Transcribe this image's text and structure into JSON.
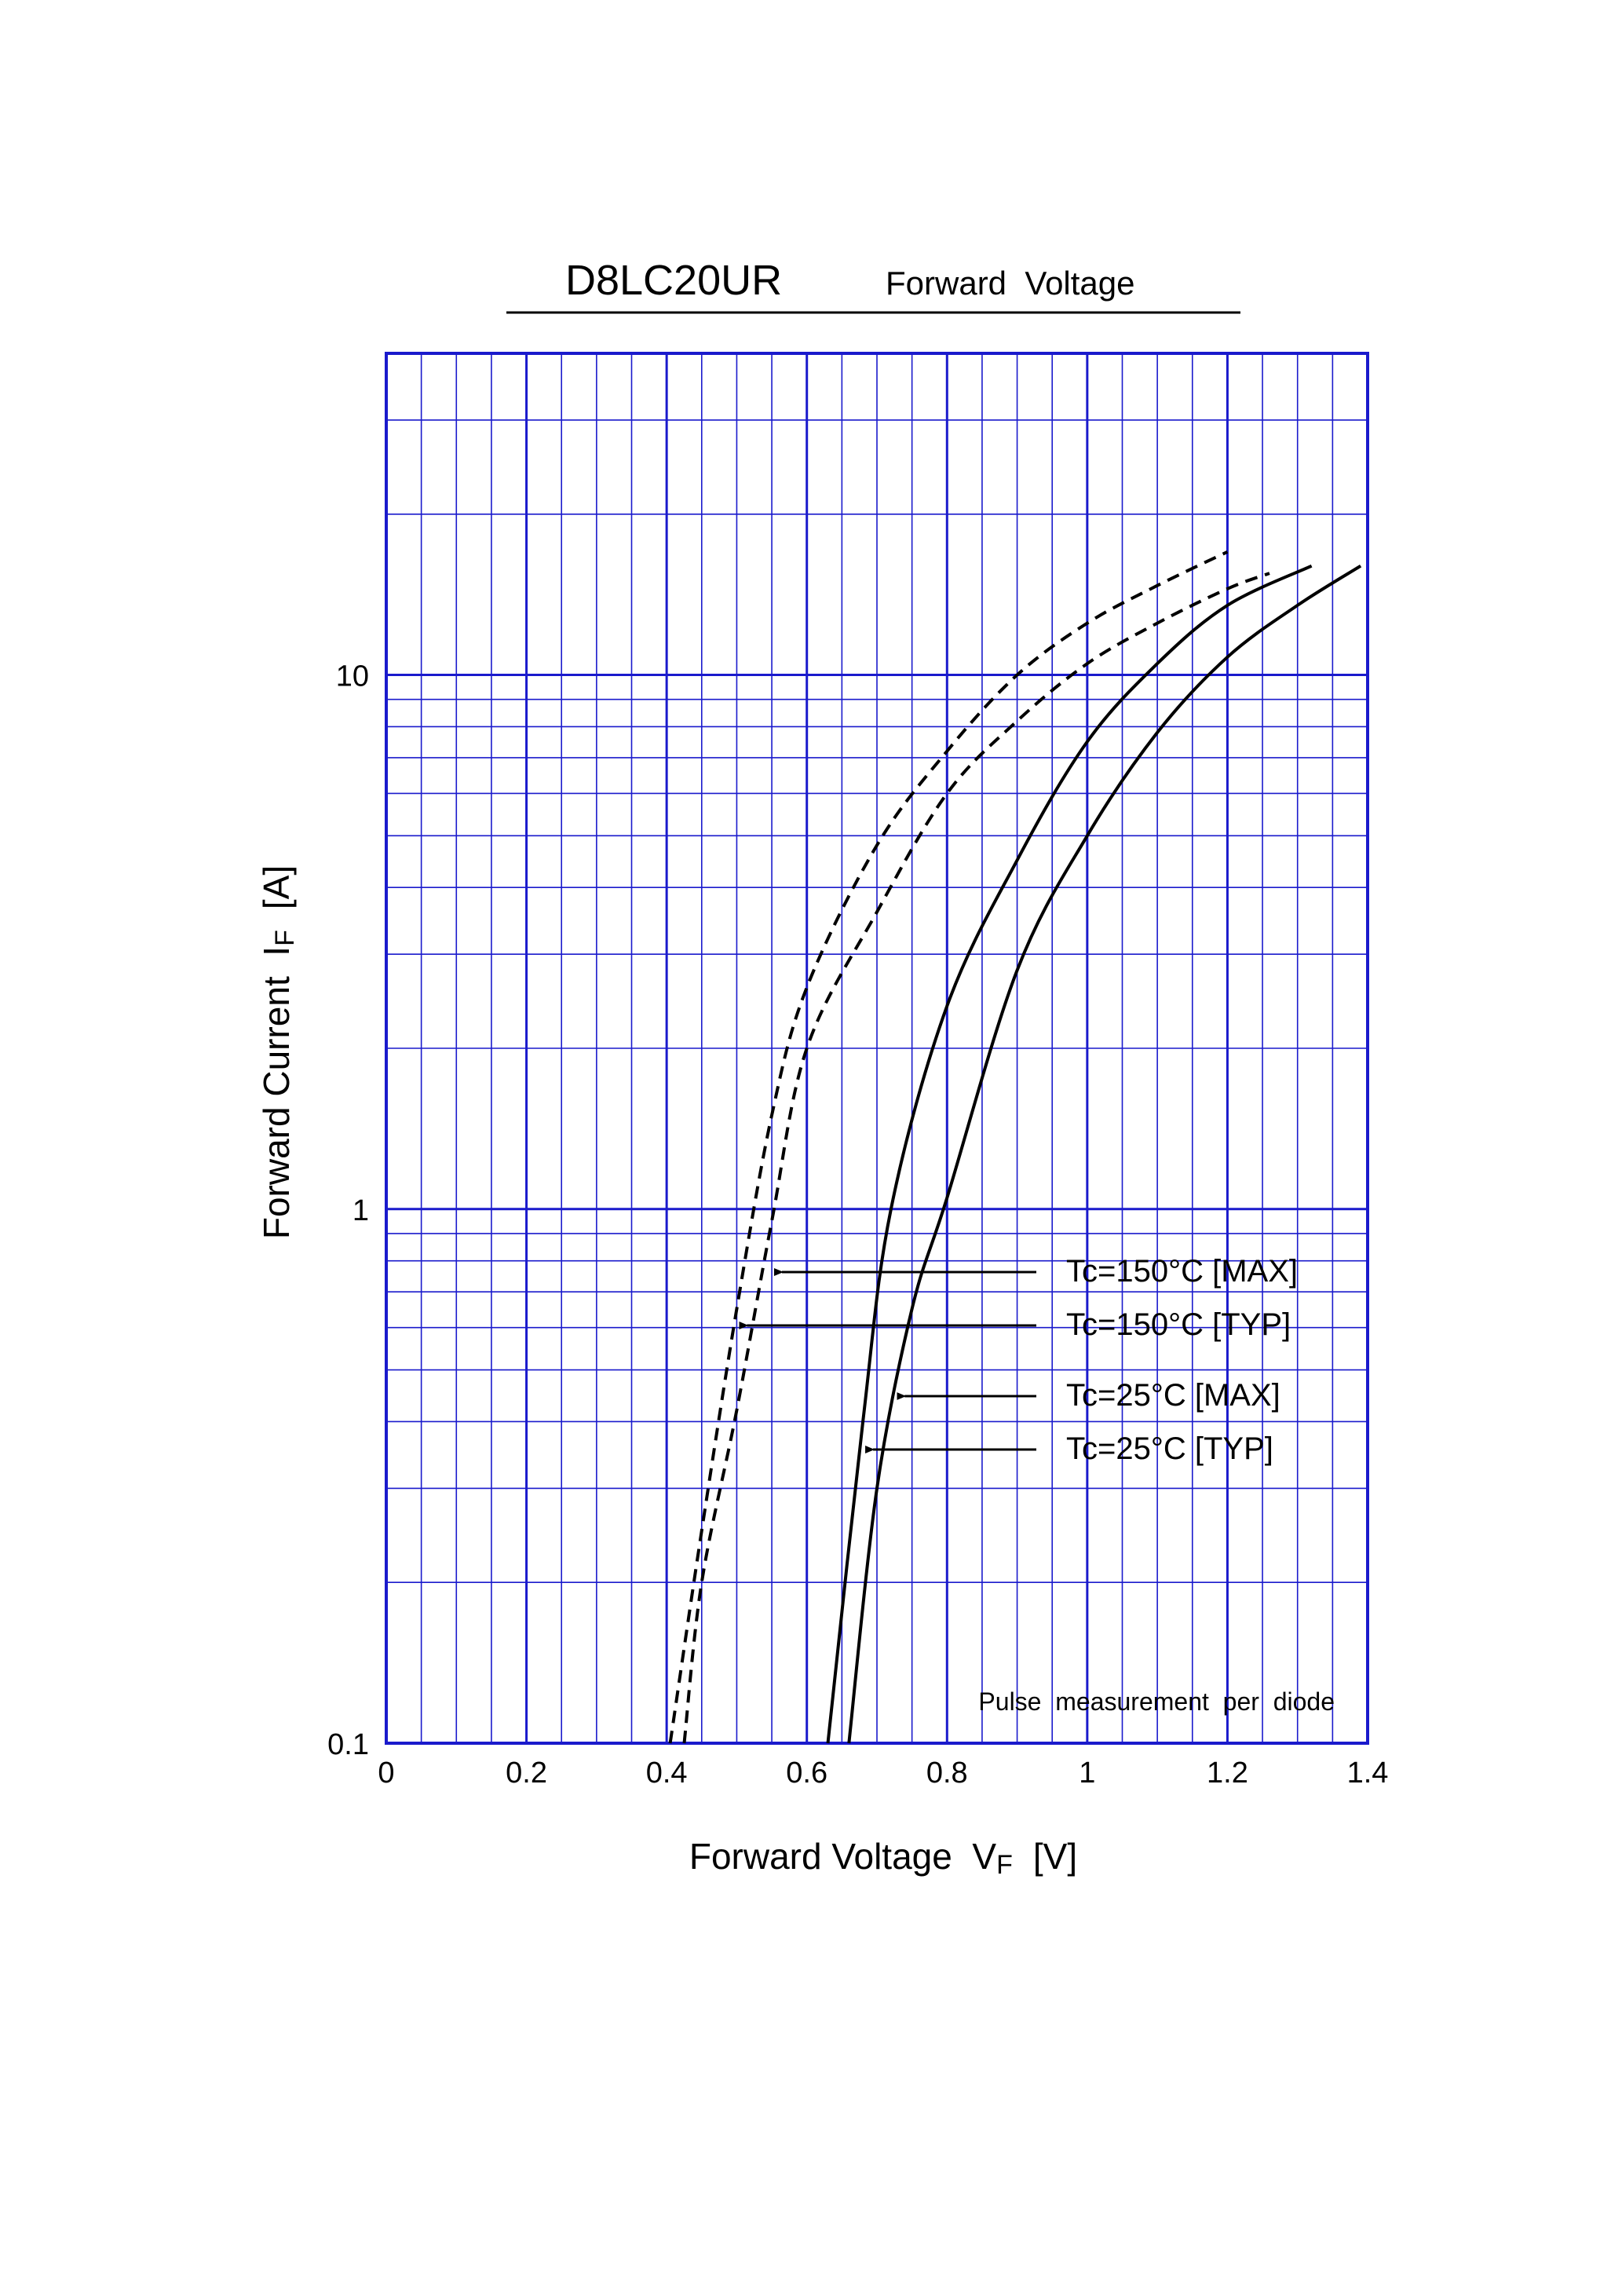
{
  "chart_data": {
    "type": "line",
    "title": "D8LC20UR",
    "subtitle": "Forward  Voltage",
    "xlabel": {
      "main": "Forward Voltage  V",
      "sub": "F",
      "unit": "[V]"
    },
    "ylabel": {
      "main": "Forward Current  I",
      "sub": "F",
      "unit": "[A]"
    },
    "xlim": [
      0,
      1.4
    ],
    "ylim": [
      0.1,
      40
    ],
    "yscale": "log",
    "grid": true,
    "x_ticks": [
      "0",
      "0.2",
      "0.4",
      "0.6",
      "0.8",
      "1",
      "1.2",
      "1.4"
    ],
    "x_tick_values": [
      0,
      0.2,
      0.4,
      0.6,
      0.8,
      1.0,
      1.2,
      1.4
    ],
    "y_ticks": [
      "0.1",
      "1",
      "10"
    ],
    "y_tick_values": [
      0.1,
      1,
      10
    ],
    "annotation": "Pulse  measurement  per  diode",
    "grid_color": "#1a1acc",
    "series": [
      {
        "name": "Tc=150°C [MAX]",
        "style": "dashed",
        "x": [
          0.405,
          0.45,
          0.5,
          0.55,
          0.6,
          0.7,
          0.8,
          0.9,
          1.0,
          1.1,
          1.2
        ],
        "y": [
          0.1,
          0.25,
          0.65,
          1.5,
          2.6,
          4.8,
          7.2,
          10.0,
          12.5,
          14.7,
          17.0
        ]
      },
      {
        "name": "Tc=150°C [TYP]",
        "style": "dashed",
        "x": [
          0.425,
          0.45,
          0.5,
          0.55,
          0.6,
          0.7,
          0.8,
          0.9,
          1.0,
          1.1,
          1.2,
          1.26
        ],
        "y": [
          0.1,
          0.2,
          0.42,
          0.95,
          2.0,
          3.6,
          6.0,
          8.2,
          10.5,
          12.5,
          14.5,
          15.5
        ]
      },
      {
        "name": "Tc=25°C [MAX]",
        "style": "solid",
        "x": [
          0.63,
          0.68,
          0.72,
          0.8,
          0.9,
          1.0,
          1.1,
          1.2,
          1.32
        ],
        "y": [
          0.1,
          0.4,
          1.0,
          2.4,
          4.5,
          7.5,
          10.5,
          13.5,
          16.0
        ]
      },
      {
        "name": "Tc=25°C [TYP]",
        "style": "solid",
        "x": [
          0.66,
          0.7,
          0.75,
          0.8,
          0.9,
          1.0,
          1.1,
          1.2,
          1.3,
          1.39
        ],
        "y": [
          0.1,
          0.3,
          0.65,
          1.05,
          2.8,
          5.0,
          7.8,
          10.8,
          13.5,
          16.0
        ]
      }
    ],
    "legend_callouts": [
      {
        "label": "Tc=150°C [MAX]",
        "target_x": 0.56,
        "target_y": 0.75
      },
      {
        "label": "Tc=150°C [TYP]",
        "target_x": 0.51,
        "target_y": 0.58
      },
      {
        "label": "Tc=25°C [MAX]",
        "target_x": 0.735,
        "target_y": 0.43
      },
      {
        "label": "Tc=25°C [TYP]",
        "target_x": 0.69,
        "target_y": 0.34
      }
    ]
  }
}
